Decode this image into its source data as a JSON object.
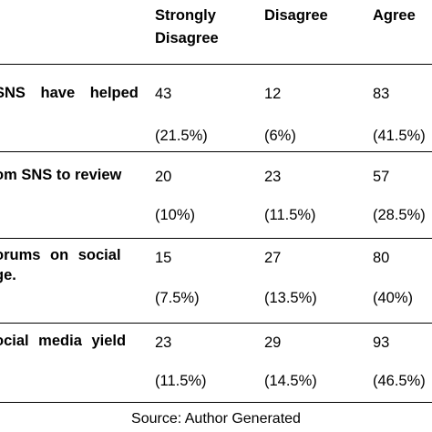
{
  "table": {
    "headers": [
      "Strongly\nDisagree",
      "Disagree",
      "Agree"
    ],
    "rows": [
      {
        "statement": [
          "SNS have helped",
          ""
        ],
        "values": [
          [
            "43",
            "(21.5%)"
          ],
          [
            "12",
            "(6%)"
          ],
          [
            "83",
            "(41.5%)"
          ]
        ]
      },
      {
        "statement": [
          "om SNS to review",
          ""
        ],
        "values": [
          [
            "20",
            "(10%)"
          ],
          [
            "23",
            "(11.5%)"
          ],
          [
            "57",
            "(28.5%)"
          ]
        ]
      },
      {
        "statement": [
          "orums on social",
          "ge."
        ],
        "values": [
          [
            "15",
            "(7.5%)"
          ],
          [
            "27",
            "(13.5%)"
          ],
          [
            "80",
            "(40%)"
          ]
        ]
      },
      {
        "statement": [
          "ocial media yield",
          ""
        ],
        "values": [
          [
            "23",
            "(11.5%)"
          ],
          [
            "29",
            "(14.5%)"
          ],
          [
            "93",
            "(46.5%)"
          ]
        ]
      }
    ]
  },
  "source": "Source: Author Generated"
}
